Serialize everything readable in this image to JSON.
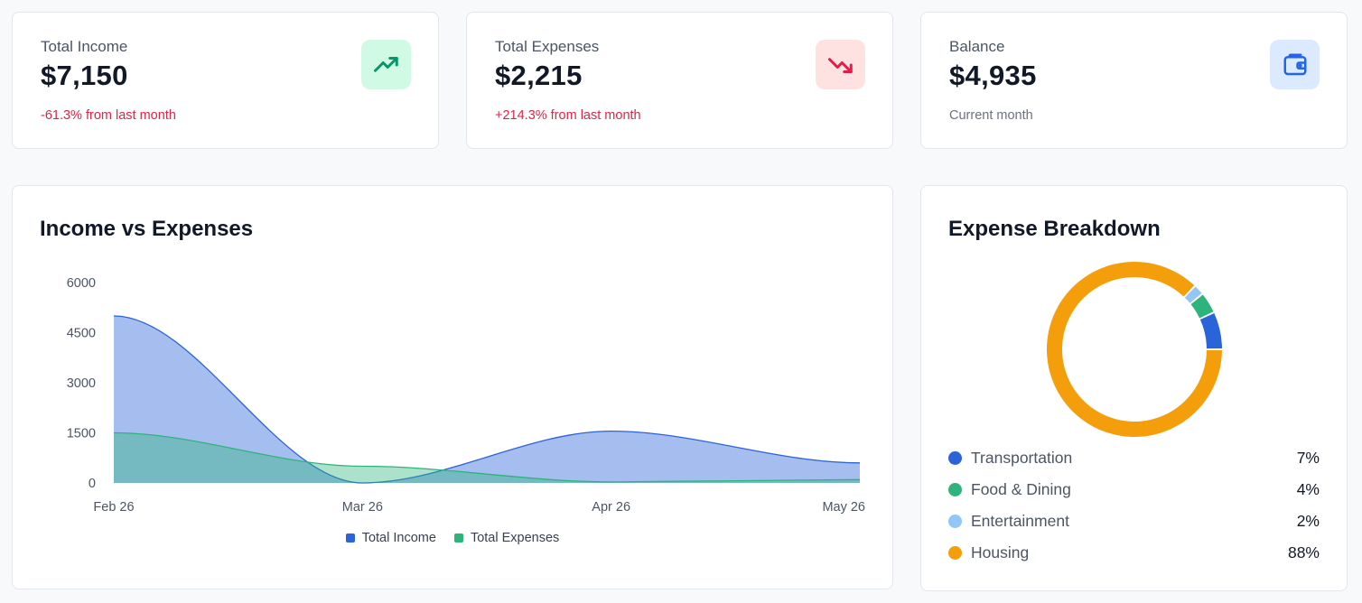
{
  "stats": [
    {
      "label": "Total Income",
      "value": "$7,150",
      "sub": "-61.3% from last month",
      "icon": "trending-up-icon",
      "color": "#059669"
    },
    {
      "label": "Total Expenses",
      "value": "$2,215",
      "sub": "+214.3% from last month",
      "icon": "trending-down-icon",
      "color": "#e11d48"
    },
    {
      "label": "Balance",
      "value": "$4,935",
      "sub": "Current month",
      "icon": "wallet-icon",
      "color": "#2563eb"
    }
  ],
  "income_expenses": {
    "title": "Income vs Expenses",
    "legend": [
      {
        "label": "Total Income",
        "color": "#2b63d9"
      },
      {
        "label": "Total Expenses",
        "color": "#2fb37c"
      }
    ]
  },
  "breakdown": {
    "title": "Expense Breakdown",
    "items": [
      {
        "label": "Transportation",
        "pct": "7%",
        "color": "#2b63d9"
      },
      {
        "label": "Food & Dining",
        "pct": "4%",
        "color": "#2fb37c"
      },
      {
        "label": "Entertainment",
        "pct": "2%",
        "color": "#93c5f7"
      },
      {
        "label": "Housing",
        "pct": "88%",
        "color": "#f59e0b"
      }
    ]
  },
  "chart_data": [
    {
      "type": "area",
      "title": "Income vs Expenses",
      "x": [
        "Feb 26",
        "Mar 26",
        "Apr 26",
        "May 26"
      ],
      "ylim": [
        0,
        6000
      ],
      "yticks": [
        0,
        1500,
        3000,
        4500,
        6000
      ],
      "series": [
        {
          "name": "Total Income",
          "values": [
            5000,
            0,
            1550,
            600
          ],
          "color": "#2b63d9"
        },
        {
          "name": "Total Expenses",
          "values": [
            1500,
            500,
            30,
            100
          ],
          "color": "#2fb37c"
        }
      ],
      "grid": false,
      "legend": "bottom"
    },
    {
      "type": "pie",
      "title": "Expense Breakdown",
      "categories": [
        "Transportation",
        "Food & Dining",
        "Entertainment",
        "Housing"
      ],
      "values": [
        7,
        4,
        2,
        88
      ],
      "colors": [
        "#2b63d9",
        "#2fb37c",
        "#93c5f7",
        "#f59e0b"
      ],
      "legend": "bottom"
    }
  ]
}
